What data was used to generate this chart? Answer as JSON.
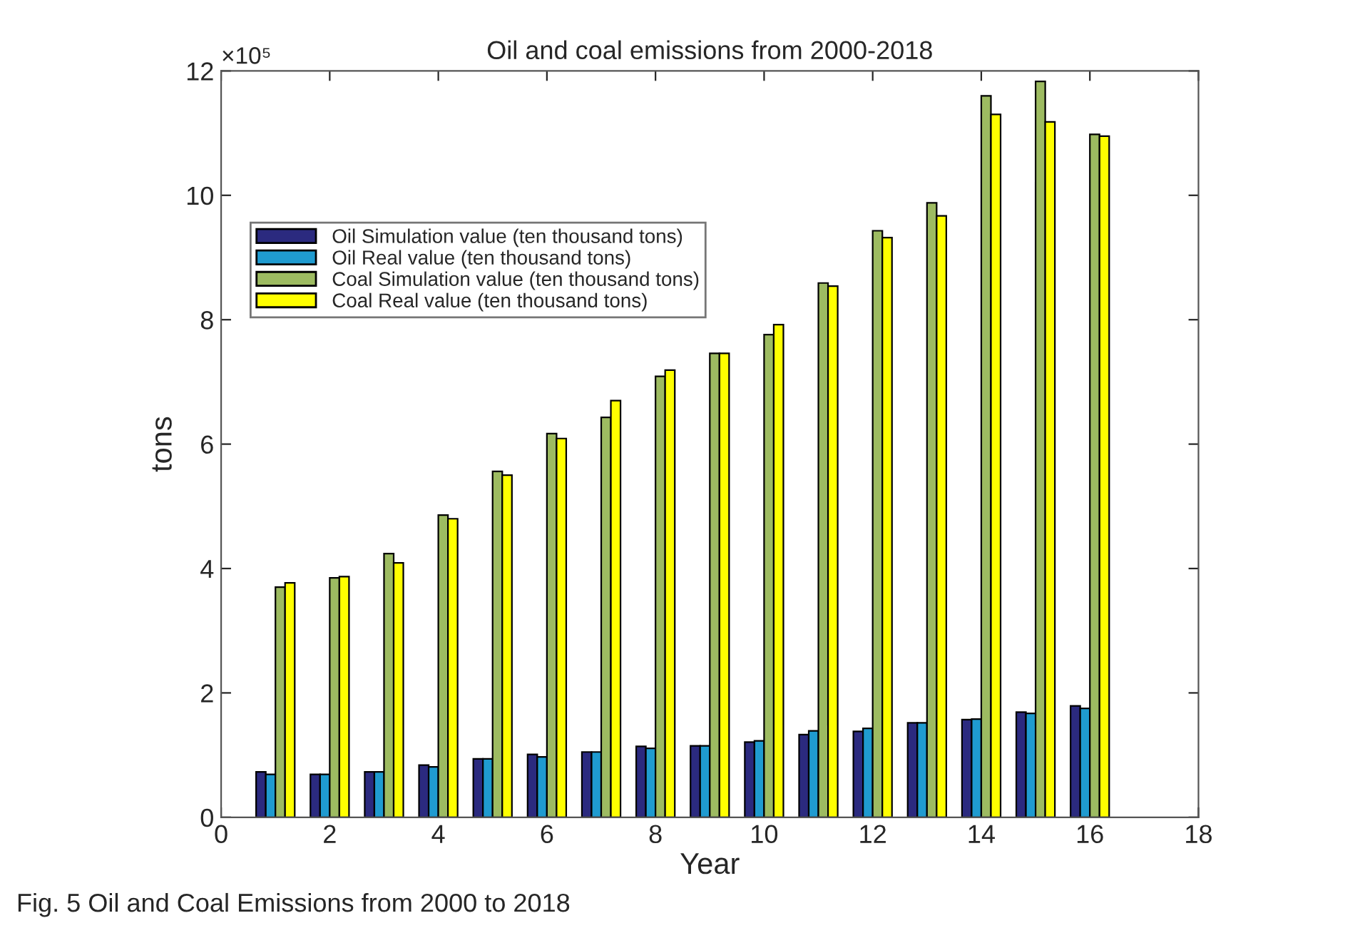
{
  "chart_data": {
    "type": "bar",
    "title": "Oil and coal emissions from 2000-2018",
    "xlabel": "Year",
    "ylabel": "tons",
    "annotations": [
      "×10⁵",
      "Fig. 5 Oil and Coal Emissions from 2000 to 2018"
    ],
    "x": [
      1,
      2,
      3,
      4,
      5,
      6,
      7,
      8,
      9,
      10,
      11,
      12,
      13,
      14,
      15,
      16
    ],
    "series": [
      {
        "name": "Oil Simulation value (ten thousand tons)",
        "color": "#2b2a7f",
        "values": [
          0.73,
          0.69,
          0.73,
          0.84,
          0.94,
          1.01,
          1.05,
          1.14,
          1.15,
          1.21,
          1.33,
          1.38,
          1.52,
          1.57,
          1.69,
          1.79
        ]
      },
      {
        "name": "Oil Real value (ten thousand tons)",
        "color": "#1f9bd0",
        "values": [
          0.69,
          0.69,
          0.73,
          0.81,
          0.94,
          0.97,
          1.05,
          1.11,
          1.15,
          1.23,
          1.39,
          1.43,
          1.52,
          1.58,
          1.67,
          1.75
        ]
      },
      {
        "name": "Coal Simulation value (ten thousand tons)",
        "color": "#9dbb61",
        "values": [
          3.7,
          3.85,
          4.24,
          4.86,
          5.56,
          6.17,
          6.43,
          7.09,
          7.46,
          7.76,
          8.59,
          9.43,
          9.88,
          11.6,
          11.83,
          10.98
        ]
      },
      {
        "name": "Coal Real value (ten thousand tons)",
        "color": "#ffff00",
        "values": [
          3.77,
          3.87,
          4.09,
          4.8,
          5.5,
          6.09,
          6.7,
          7.19,
          7.46,
          7.92,
          8.54,
          9.32,
          9.67,
          11.3,
          11.18,
          10.95
        ]
      }
    ],
    "xlim": [
      0,
      18
    ],
    "xticks": [
      0,
      2,
      4,
      6,
      8,
      10,
      12,
      14,
      16,
      18
    ],
    "ylim": [
      0,
      12
    ],
    "yticks": [
      0,
      2,
      4,
      6,
      8,
      10,
      12
    ],
    "grid": false,
    "legend": "top left"
  }
}
